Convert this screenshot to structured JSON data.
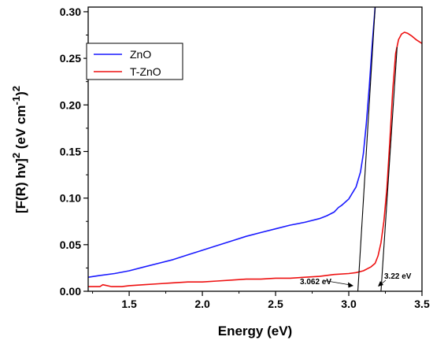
{
  "chart_data": {
    "type": "line",
    "xlabel": "Energy (eV)",
    "ylabel_parts": {
      "base": "[F(R) hν]",
      "exp": "2",
      "unit_open": " (eV cm",
      "unit_exp": "-1",
      "unit_close": ")",
      "unit_exp2": "2"
    },
    "xlim": [
      1.22,
      3.5
    ],
    "ylim": [
      0.0,
      0.305
    ],
    "x_ticks": [
      "1.5",
      "2.0",
      "2.5",
      "3.0",
      "3.5"
    ],
    "y_ticks": [
      "0.00",
      "0.05",
      "0.10",
      "0.15",
      "0.20",
      "0.25",
      "0.30"
    ],
    "legend_position": "top-left",
    "series": [
      {
        "name": "ZnO",
        "color": "#1a1aff",
        "x": [
          1.22,
          1.3,
          1.4,
          1.5,
          1.6,
          1.7,
          1.8,
          1.9,
          2.0,
          2.1,
          2.2,
          2.3,
          2.4,
          2.5,
          2.6,
          2.7,
          2.8,
          2.85,
          2.9,
          2.93,
          2.95,
          3.0,
          3.05,
          3.08,
          3.1,
          3.12,
          3.14,
          3.16,
          3.18
        ],
        "y": [
          0.015,
          0.017,
          0.019,
          0.022,
          0.026,
          0.03,
          0.034,
          0.039,
          0.044,
          0.049,
          0.054,
          0.059,
          0.063,
          0.067,
          0.071,
          0.074,
          0.078,
          0.081,
          0.085,
          0.09,
          0.092,
          0.099,
          0.112,
          0.128,
          0.148,
          0.18,
          0.22,
          0.265,
          0.305
        ]
      },
      {
        "name": "T-ZnO",
        "color": "#ee1111",
        "x": [
          1.22,
          1.3,
          1.32,
          1.38,
          1.45,
          1.5,
          1.6,
          1.7,
          1.8,
          1.9,
          2.0,
          2.1,
          2.2,
          2.3,
          2.4,
          2.5,
          2.6,
          2.7,
          2.8,
          2.9,
          3.0,
          3.05,
          3.1,
          3.15,
          3.18,
          3.2,
          3.22,
          3.24,
          3.26,
          3.28,
          3.3,
          3.32,
          3.34,
          3.36,
          3.38,
          3.4,
          3.43,
          3.46,
          3.5
        ],
        "y": [
          0.005,
          0.005,
          0.007,
          0.005,
          0.005,
          0.006,
          0.007,
          0.008,
          0.009,
          0.01,
          0.01,
          0.011,
          0.012,
          0.013,
          0.013,
          0.014,
          0.014,
          0.015,
          0.016,
          0.018,
          0.019,
          0.02,
          0.022,
          0.026,
          0.03,
          0.038,
          0.052,
          0.075,
          0.11,
          0.16,
          0.215,
          0.255,
          0.27,
          0.276,
          0.278,
          0.277,
          0.274,
          0.27,
          0.266
        ]
      }
    ],
    "tangent_lines": [
      {
        "x": [
          3.062,
          3.18
        ],
        "y": [
          0.0,
          0.305
        ]
      },
      {
        "x": [
          3.22,
          3.33
        ],
        "y": [
          0.0,
          0.262
        ]
      }
    ],
    "annotations": [
      {
        "text": "3.062 eV",
        "x": 3.062,
        "y": 0.0
      },
      {
        "text": "3.22 eV",
        "x": 3.22,
        "y": 0.0
      }
    ]
  }
}
